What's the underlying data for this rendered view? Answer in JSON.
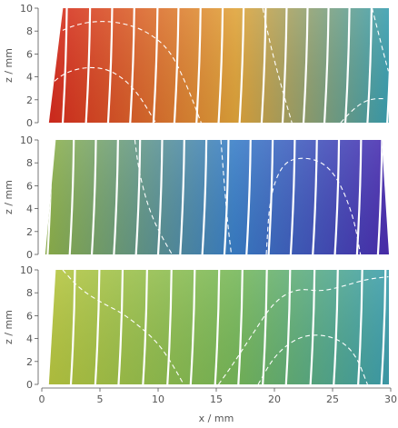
{
  "chart_data": [
    {
      "type": "heatmap",
      "title": "",
      "xlabel": "",
      "ylabel": "z / mm",
      "xlim": [
        0,
        30
      ],
      "ylim": [
        0,
        10
      ],
      "x_ticks": [
        "0",
        "5",
        "10",
        "15",
        "20",
        "25",
        "30"
      ],
      "y_ticks": [
        "0",
        "2",
        "4",
        "6",
        "8",
        "10"
      ],
      "field_colors": {
        "left": "#d62a1e",
        "center": "#e0a43a",
        "right": "#3a9fb0"
      },
      "solid_contour_x_at_z0": [
        1.8,
        3.8,
        5.7,
        7.6,
        9.6,
        11.4,
        13.3,
        15.2,
        17.0,
        18.9,
        20.7,
        22.5,
        24.3,
        26.1,
        28.0,
        29.7
      ],
      "dashed_contours": [
        {
          "x": [
            0.6,
            2,
            4,
            6,
            8,
            9.8
          ],
          "z": [
            3.2,
            4.4,
            4.9,
            4.6,
            3.0,
            0
          ]
        },
        {
          "x": [
            1.2,
            3,
            5,
            7,
            9,
            11,
            12.5,
            13.7
          ],
          "z": [
            7.8,
            8.6,
            8.9,
            8.7,
            8.0,
            6.4,
            3.2,
            0
          ]
        },
        {
          "x": [
            19.0,
            19.6,
            20.5,
            21.5
          ],
          "z": [
            10,
            7.0,
            3.5,
            0
          ]
        },
        {
          "x": [
            25.7,
            26.6,
            27.6,
            28.5,
            29.5
          ],
          "z": [
            0,
            1.0,
            1.8,
            2.1,
            2.1
          ]
        },
        {
          "x": [
            28.4,
            28.9,
            29.4,
            29.8
          ],
          "z": [
            10,
            8.0,
            6.0,
            4.5
          ]
        }
      ]
    },
    {
      "type": "heatmap",
      "title": "",
      "xlabel": "",
      "ylabel": "z / mm",
      "xlim": [
        0,
        30
      ],
      "ylim": [
        0,
        10
      ],
      "x_ticks": [
        "0",
        "5",
        "10",
        "15",
        "20",
        "25",
        "30"
      ],
      "y_ticks": [
        "0",
        "2",
        "4",
        "6",
        "8",
        "10"
      ],
      "field_colors": {
        "left": "#8fb24a",
        "center": "#3a7fc8",
        "right": "#4b2db0"
      },
      "solid_contour_x_at_z0": [
        0.5,
        2.4,
        4.3,
        6.2,
        8.1,
        10.0,
        11.9,
        13.8,
        15.7,
        17.6,
        19.5,
        21.4,
        23.3,
        25.2,
        27.1,
        28.9
      ],
      "dashed_contours": [
        {
          "x": [
            8.0,
            8.3,
            8.9,
            9.6,
            10.4,
            11.2
          ],
          "z": [
            10,
            7.6,
            5.0,
            3.0,
            1.4,
            0
          ]
        },
        {
          "x": [
            15.4,
            15.7,
            16.0,
            16.3
          ],
          "z": [
            10,
            6.0,
            2.5,
            0
          ]
        },
        {
          "x": [
            19.3,
            19.6,
            20.6,
            22.0,
            24.0,
            25.5,
            26.8,
            27.4
          ],
          "z": [
            0,
            5.0,
            7.8,
            8.5,
            8.2,
            6.6,
            3.3,
            0
          ]
        }
      ]
    },
    {
      "type": "heatmap",
      "title": "",
      "xlabel": "x / mm",
      "ylabel": "z / mm",
      "xlim": [
        0,
        30
      ],
      "ylim": [
        0,
        10
      ],
      "x_ticks": [
        "0",
        "5",
        "10",
        "15",
        "20",
        "25",
        "30"
      ],
      "y_ticks": [
        "0",
        "2",
        "4",
        "6",
        "8",
        "10"
      ],
      "field_colors": {
        "left": "#b7c640",
        "center": "#77b85a",
        "right": "#3e9fae"
      },
      "solid_contour_x_at_z0": [
        0.4,
        2.5,
        4.6,
        6.6,
        8.7,
        10.8,
        12.8,
        14.9,
        16.9,
        19.0,
        21.0,
        23.1,
        25.1,
        27.2,
        29.2
      ],
      "dashed_contours": [
        {
          "x": [
            1.8,
            3.2,
            5.0,
            6.8,
            8.5,
            10.0,
            11.2,
            12.2
          ],
          "z": [
            10,
            8.4,
            7.2,
            6.3,
            5.0,
            3.6,
            1.8,
            0
          ]
        },
        {
          "x": [
            15.2,
            16.4,
            18.0,
            20.0,
            22.0,
            24.0,
            26.0,
            28.0,
            29.8
          ],
          "z": [
            0,
            1.7,
            4.2,
            7.3,
            8.4,
            8.1,
            8.6,
            9.2,
            9.4
          ]
        },
        {
          "x": [
            18.6,
            20.0,
            21.8,
            23.5,
            25.5,
            27.0,
            28.0
          ],
          "z": [
            0,
            2.5,
            4.0,
            4.4,
            4.0,
            2.6,
            0
          ]
        }
      ]
    }
  ]
}
